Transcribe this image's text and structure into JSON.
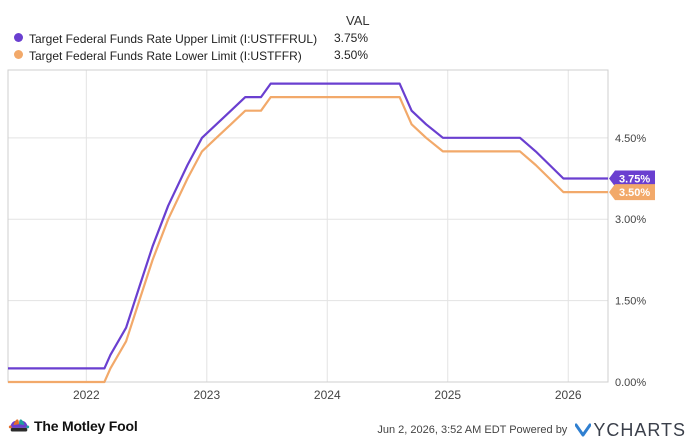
{
  "legend": {
    "header": "VAL",
    "items": [
      {
        "label": "Target Federal Funds Rate Upper Limit (I:USTFFRUL)",
        "value": "3.75%",
        "color": "#6a3fd0"
      },
      {
        "label": "Target Federal Funds Rate Lower Limit (I:USTFFR)",
        "value": "3.50%",
        "color": "#f2a96a"
      }
    ]
  },
  "footer": {
    "brand": "The Motley Fool",
    "timestamp": "Jun 2, 2026, 3:52 AM EDT  Powered by",
    "ycharts": "YCHARTS"
  },
  "chart_data": {
    "type": "line",
    "title": "",
    "xlabel": "",
    "ylabel": "",
    "ylim": [
      0,
      5.75
    ],
    "xlim": [
      2021.35,
      2026.33
    ],
    "y_ticks": [
      "0.00%",
      "1.50%",
      "3.00%",
      "4.50%"
    ],
    "y_tick_values": [
      0,
      1.5,
      3.0,
      4.5
    ],
    "x_ticks": [
      "2022",
      "2023",
      "2024",
      "2025",
      "2026"
    ],
    "x_tick_values": [
      2022,
      2023,
      2024,
      2025,
      2026
    ],
    "grid": true,
    "series": [
      {
        "name": "Target Federal Funds Rate Upper Limit (I:USTFFRUL)",
        "color": "#6a3fd0",
        "end_label": "3.75%",
        "x": [
          2021.35,
          2022.15,
          2022.2,
          2022.33,
          2022.44,
          2022.55,
          2022.68,
          2022.84,
          2022.96,
          2023.08,
          2023.2,
          2023.32,
          2023.45,
          2023.53,
          2023.62,
          2024.6,
          2024.7,
          2024.82,
          2024.96,
          2025.6,
          2025.73,
          2025.96,
          2026.33
        ],
        "y": [
          0.25,
          0.25,
          0.5,
          1.0,
          1.75,
          2.5,
          3.25,
          4.0,
          4.5,
          4.75,
          5.0,
          5.25,
          5.25,
          5.5,
          5.5,
          5.5,
          5.0,
          4.75,
          4.5,
          4.5,
          4.25,
          3.75,
          3.75
        ]
      },
      {
        "name": "Target Federal Funds Rate Lower Limit (I:USTFFR)",
        "color": "#f2a96a",
        "end_label": "3.50%",
        "x": [
          2021.35,
          2022.15,
          2022.2,
          2022.33,
          2022.44,
          2022.55,
          2022.68,
          2022.84,
          2022.96,
          2023.08,
          2023.2,
          2023.32,
          2023.45,
          2023.53,
          2023.62,
          2024.6,
          2024.7,
          2024.82,
          2024.96,
          2025.6,
          2025.73,
          2025.96,
          2026.33
        ],
        "y": [
          0.0,
          0.0,
          0.25,
          0.75,
          1.5,
          2.25,
          3.0,
          3.75,
          4.25,
          4.5,
          4.75,
          5.0,
          5.0,
          5.25,
          5.25,
          5.25,
          4.75,
          4.5,
          4.25,
          4.25,
          4.0,
          3.5,
          3.5
        ]
      }
    ]
  }
}
